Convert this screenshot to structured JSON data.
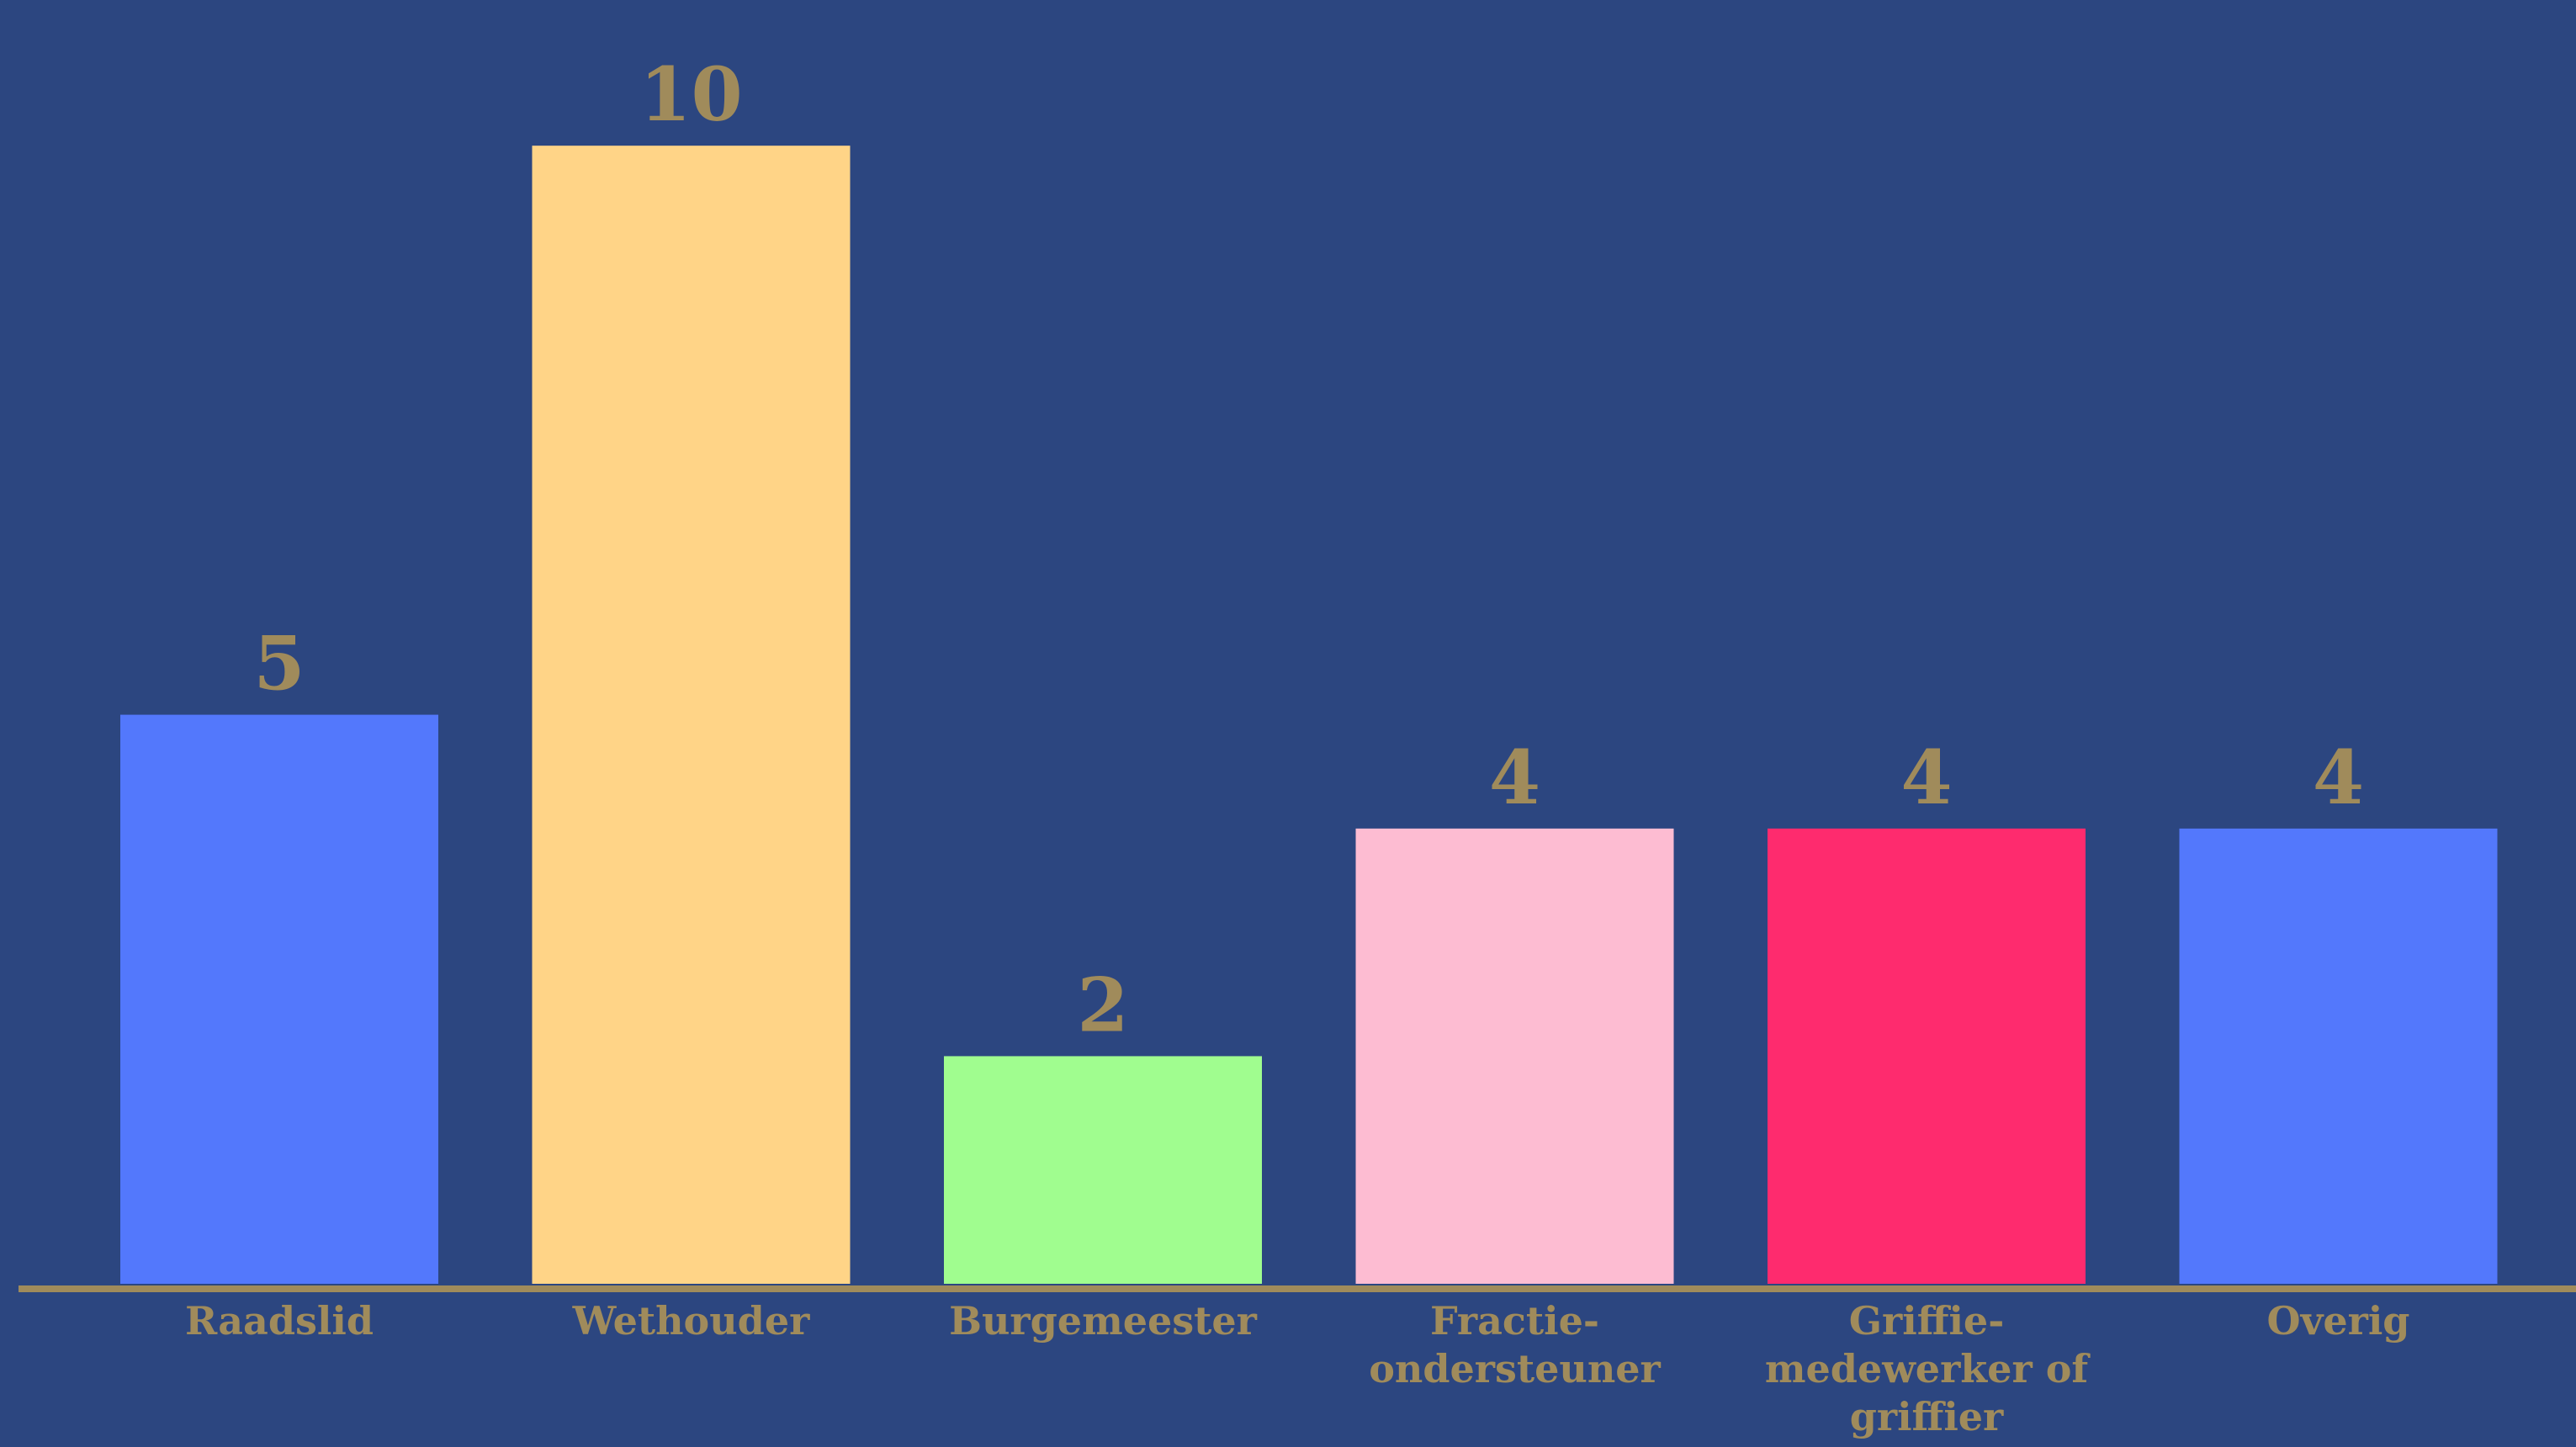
{
  "background_color": "#2c4680",
  "text_color": "#a08b5b",
  "axis_color": "#a08b5b",
  "chart_data": {
    "type": "bar",
    "title": "",
    "xlabel": "",
    "ylabel": "",
    "grid": false,
    "legend": "none",
    "ylim": [
      0,
      10.6
    ],
    "categories": [
      "Raadslid",
      "Wethouder",
      "Burgemeester",
      "Fractie-ondersteuner",
      "Griffie-medewerker of griffier",
      "Overig"
    ],
    "category_label_lines": [
      [
        "Raadslid"
      ],
      [
        "Wethouder"
      ],
      [
        "Burgemeester"
      ],
      [
        "Fractie-",
        "ondersteuner"
      ],
      [
        "Griffie-",
        "medewerker of",
        "griffier"
      ],
      [
        "Overig"
      ]
    ],
    "values": [
      5,
      10,
      2,
      4,
      4,
      4
    ],
    "value_labels": [
      "5",
      "10",
      "2",
      "4",
      "4",
      "4"
    ],
    "bar_colors": [
      "#5378fc",
      "#ffd487",
      "#a0fd8f",
      "#fdbcd2",
      "#fe2b6e",
      "#5378fc"
    ]
  }
}
